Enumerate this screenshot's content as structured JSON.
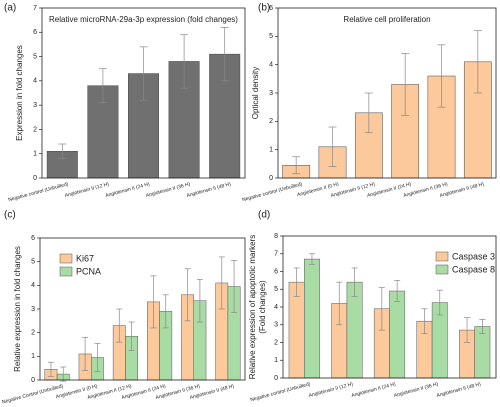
{
  "chart_data": [
    {
      "type": "bar",
      "panel_label": "(a)",
      "title": "Relative microRNA-29a-3p expression (fold changes)",
      "ylabel": "Expression in fold changes",
      "categories": [
        "Negative control (Unbuilted)",
        "Angiotensin II (12 H)",
        "Angiotensin II (24 H)",
        "Angiotensin II (36 H)",
        "Angiotensin II (48 H)"
      ],
      "values": [
        1.1,
        3.8,
        4.3,
        4.8,
        5.1
      ],
      "errors": [
        0.3,
        0.7,
        1.1,
        1.1,
        1.1
      ],
      "color": "#707070",
      "ylim": [
        0,
        7
      ],
      "yticks": [
        0,
        1,
        2,
        3,
        4,
        5,
        6,
        7
      ]
    },
    {
      "type": "bar",
      "panel_label": "(b)",
      "title": "Relative cell proliferation",
      "ylabel": "Optical density",
      "categories": [
        "Negative control (Unbuilted)",
        "Angiotensin II (0 H)",
        "Angiotensin II (12 H)",
        "Angiotensin II (24 H)",
        "Angiotensin II (36 H)",
        "Angiotensin II (48 H)"
      ],
      "values": [
        0.45,
        1.1,
        2.3,
        3.3,
        3.6,
        4.1
      ],
      "errors": [
        0.3,
        0.7,
        0.7,
        1.1,
        1.1,
        1.1
      ],
      "color": "#fbc99b",
      "ylim": [
        0,
        6
      ],
      "yticks": [
        0,
        1,
        2,
        3,
        4,
        5,
        6
      ]
    },
    {
      "type": "bar",
      "panel_label": "(c)",
      "ylabel": "Relative expression in fold changes",
      "categories": [
        "Negative Control (Unbuilted)",
        "Angiotensin II (0 H)",
        "Angiotensin II (12 H)",
        "Angiotensin II (24 H)",
        "Angiotensin II (36 H)",
        "Angiotensin II (48 H)"
      ],
      "series": [
        {
          "name": "Ki67",
          "color": "#fbc99b",
          "values": [
            0.45,
            1.1,
            2.3,
            3.3,
            3.6,
            4.1
          ],
          "errors": [
            0.3,
            0.7,
            0.7,
            1.1,
            1.1,
            1.1
          ]
        },
        {
          "name": "PCNA",
          "color": "#a9dca5",
          "values": [
            0.25,
            0.95,
            1.85,
            2.9,
            3.35,
            3.95
          ],
          "errors": [
            0.3,
            0.6,
            0.6,
            0.7,
            0.9,
            1.1
          ]
        }
      ],
      "legend": "upper-left",
      "ylim": [
        0,
        6
      ],
      "yticks": [
        0,
        1,
        2,
        3,
        4,
        5,
        6
      ]
    },
    {
      "type": "bar",
      "panel_label": "(d)",
      "ylabel": [
        "Relative expression of apoptotic markers",
        "(Fold changes)"
      ],
      "categories": [
        "Negative control (Unbuilted)",
        "Angiotensin II (12 H)",
        "Angiotensin II (24 H)",
        "Angiotensin II (36 H)",
        "Angiotensin II (48 H)"
      ],
      "series": [
        {
          "name": "Caspase 3",
          "color": "#fbc99b",
          "values": [
            5.4,
            4.2,
            3.9,
            3.2,
            2.7
          ],
          "errors": [
            0.8,
            1.2,
            1.2,
            0.7,
            0.7
          ]
        },
        {
          "name": "Caspase 8",
          "color": "#a9dca5",
          "values": [
            6.7,
            5.4,
            4.9,
            4.25,
            2.9
          ],
          "errors": [
            0.3,
            0.8,
            0.6,
            0.7,
            0.4
          ]
        }
      ],
      "legend": "upper-right",
      "ylim": [
        0,
        8
      ],
      "yticks": [
        0,
        1,
        2,
        3,
        4,
        5,
        6,
        7,
        8
      ]
    }
  ]
}
